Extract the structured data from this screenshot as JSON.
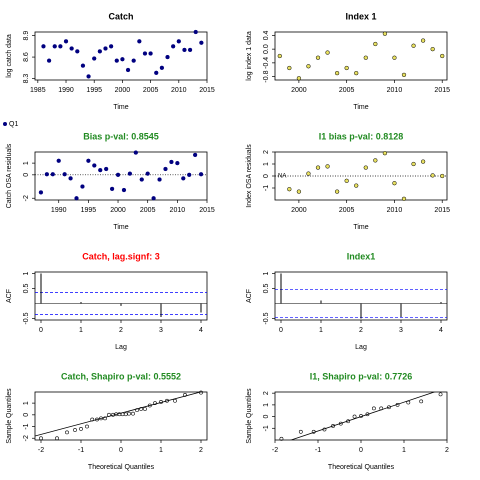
{
  "chart_data": [
    {
      "type": "scatter",
      "title": "Catch",
      "title_color": "#000000",
      "xlabel": "Time",
      "ylabel": "log catch data",
      "x": [
        1986,
        1987,
        1988,
        1989,
        1990,
        1991,
        1992,
        1993,
        1994,
        1995,
        1996,
        1997,
        1998,
        1999,
        2000,
        2001,
        2002,
        2003,
        2004,
        2005,
        2006,
        2007,
        2008,
        2009,
        2010,
        2011,
        2012,
        2013,
        2014
      ],
      "series": [
        {
          "name": "Q1",
          "color": "#000080",
          "values": [
            8.75,
            8.55,
            8.75,
            8.75,
            8.82,
            8.72,
            8.68,
            8.48,
            8.33,
            8.58,
            8.68,
            8.72,
            8.75,
            8.55,
            8.57,
            8.42,
            8.55,
            8.82,
            8.65,
            8.65,
            8.38,
            8.45,
            8.6,
            8.75,
            8.82,
            8.7,
            8.7,
            8.95,
            8.8
          ]
        }
      ],
      "xlim": [
        1984.5,
        2015
      ],
      "ylim": [
        8.28,
        8.95
      ],
      "xticks": [
        1985,
        1990,
        1995,
        2000,
        2005,
        2010,
        2015
      ],
      "yticks": [
        8.3,
        8.6,
        8.9
      ]
    },
    {
      "type": "scatter",
      "title": "Index 1",
      "title_color": "#000000",
      "xlabel": "Time",
      "ylabel": "log index 1 data",
      "x": [
        1998,
        1999,
        2000,
        2001,
        2002,
        2003,
        2004,
        2005,
        2006,
        2007,
        2008,
        2009,
        2010,
        2011,
        2012,
        2013,
        2014,
        2015
      ],
      "values": [
        -0.2,
        -0.55,
        -0.85,
        -0.5,
        -0.25,
        -0.1,
        -0.7,
        -0.55,
        -0.7,
        -0.25,
        0.15,
        0.45,
        -0.25,
        -0.75,
        0.1,
        0.25,
        0.0,
        -0.2
      ],
      "color": "#e8e060",
      "xlim": [
        1997.5,
        2015.5
      ],
      "ylim": [
        -0.9,
        0.5
      ],
      "xticks": [
        2000,
        2005,
        2010,
        2015
      ],
      "yticks": [
        -0.8,
        -0.4,
        {
          "value": 0,
          "label": "0.0"
        },
        0.4
      ]
    },
    {
      "type": "residual",
      "title": "Bias p-val: 0.8545",
      "title_color": "#228b22",
      "xlabel": "Time",
      "ylabel": "Catch OSA residuals",
      "x": [
        1987,
        1988,
        1989,
        1990,
        1991,
        1992,
        1993,
        1994,
        1995,
        1996,
        1997,
        1998,
        1999,
        2000,
        2001,
        2002,
        2003,
        2004,
        2005,
        2006,
        2007,
        2008,
        2009,
        2010,
        2011,
        2012,
        2013,
        2014
      ],
      "values": [
        -1.5,
        0.05,
        0.05,
        1.2,
        0.05,
        -0.3,
        -2.0,
        -1.0,
        1.2,
        0.8,
        0.4,
        0.5,
        -1.2,
        0.0,
        -1.3,
        0.1,
        1.9,
        -0.4,
        0.1,
        -2.0,
        -0.4,
        0.5,
        1.1,
        1.0,
        -0.3,
        0.0,
        1.7,
        0.05
      ],
      "color": "#000080",
      "xlim": [
        1986,
        2015
      ],
      "ylim": [
        -2.15,
        1.95
      ],
      "xticks": [
        1990,
        1995,
        2000,
        2005,
        2010,
        2015
      ],
      "yticks": [
        -2,
        0,
        1
      ]
    },
    {
      "type": "residual",
      "title": "I1 bias p-val: 0.8128",
      "title_color": "#228b22",
      "xlabel": "Time",
      "ylabel": "Index OSA residuals",
      "annotation": "NA",
      "x": [
        1999,
        2000,
        2001,
        2002,
        2003,
        2004,
        2005,
        2006,
        2007,
        2008,
        2009,
        2010,
        2011,
        2012,
        2013,
        2014,
        2015
      ],
      "values": [
        -1.1,
        -1.3,
        0.2,
        0.7,
        0.8,
        -1.3,
        -0.4,
        -0.8,
        0.7,
        1.3,
        1.9,
        -0.6,
        -1.9,
        1.0,
        1.2,
        0.05,
        0.0
      ],
      "color": "#e8e060",
      "xlim": [
        1997.5,
        2015.5
      ],
      "ylim": [
        -2.0,
        2.0
      ],
      "xticks": [
        2000,
        2005,
        2010,
        2015
      ],
      "yticks": [
        -1,
        0,
        1,
        2
      ]
    },
    {
      "type": "acf",
      "title": "Catch, lag.signf: 3",
      "title_color": "#ff0000",
      "xlabel": "Lag",
      "ylabel": "ACF",
      "x": [
        0,
        1,
        2,
        3,
        4
      ],
      "values": [
        1.0,
        0.05,
        -0.08,
        -0.45,
        -0.3
      ],
      "ci": 0.37,
      "xlim": [
        -0.15,
        4.15
      ],
      "ylim": [
        -0.55,
        1.05
      ],
      "xticks": [
        0,
        1,
        2,
        3,
        4
      ],
      "yticks": [
        -0.5,
        0.5,
        1
      ]
    },
    {
      "type": "acf",
      "title": "Index1",
      "title_color": "#228b22",
      "xlabel": "Lag",
      "ylabel": "ACF",
      "x": [
        0,
        1,
        2,
        3,
        4
      ],
      "values": [
        1.0,
        0.1,
        -0.5,
        -0.45,
        0.05
      ],
      "ci": 0.46,
      "xlim": [
        -0.15,
        4.15
      ],
      "ylim": [
        -0.55,
        1.05
      ],
      "xticks": [
        0,
        1,
        2,
        3,
        4
      ],
      "yticks": [
        -0.5,
        0.5,
        1
      ]
    },
    {
      "type": "qq",
      "title": "Catch, Shapiro p-val: 0.5552",
      "title_color": "#228b22",
      "xlabel": "Theoretical Quantiles",
      "ylabel": "Sample Quantiles",
      "x": [
        -2.0,
        -1.6,
        -1.35,
        -1.15,
        -1.0,
        -0.85,
        -0.72,
        -0.6,
        -0.5,
        -0.4,
        -0.3,
        -0.2,
        -0.12,
        -0.04,
        0.04,
        0.12,
        0.2,
        0.3,
        0.4,
        0.5,
        0.6,
        0.72,
        0.85,
        1.0,
        1.15,
        1.35,
        1.6,
        2.0
      ],
      "values": [
        -2.0,
        -2.0,
        -1.5,
        -1.3,
        -1.2,
        -1.0,
        -0.4,
        -0.4,
        -0.3,
        -0.3,
        0.0,
        0.0,
        0.05,
        0.05,
        0.05,
        0.05,
        0.1,
        0.1,
        0.4,
        0.5,
        0.5,
        0.8,
        1.0,
        1.1,
        1.2,
        1.2,
        1.7,
        1.9
      ],
      "color": "#000000",
      "xlim": [
        -2.15,
        2.15
      ],
      "ylim": [
        -2.15,
        1.95
      ],
      "xticks": [
        -2,
        -1,
        0,
        1,
        2
      ],
      "yticks": [
        -2,
        -1,
        0,
        1
      ]
    },
    {
      "type": "qq",
      "title": "I1, Shapiro p-val: 0.7726",
      "title_color": "#228b22",
      "xlabel": "Theoretical Quantiles",
      "ylabel": "Sample Quantiles",
      "x": [
        -1.85,
        -1.4,
        -1.1,
        -0.85,
        -0.65,
        -0.47,
        -0.3,
        -0.15,
        0,
        0.15,
        0.3,
        0.47,
        0.65,
        0.85,
        1.1,
        1.4,
        1.85
      ],
      "values": [
        -1.9,
        -1.3,
        -1.3,
        -1.1,
        -0.8,
        -0.6,
        -0.4,
        0.0,
        0.05,
        0.2,
        0.7,
        0.7,
        0.8,
        1.0,
        1.2,
        1.3,
        1.9
      ],
      "color": "#000000",
      "xlim": [
        -2.0,
        2.0
      ],
      "ylim": [
        -2.0,
        2.1
      ],
      "xticks": [
        -2,
        -1,
        0,
        1,
        2
      ],
      "yticks": [
        -1,
        0,
        1,
        2
      ]
    }
  ]
}
